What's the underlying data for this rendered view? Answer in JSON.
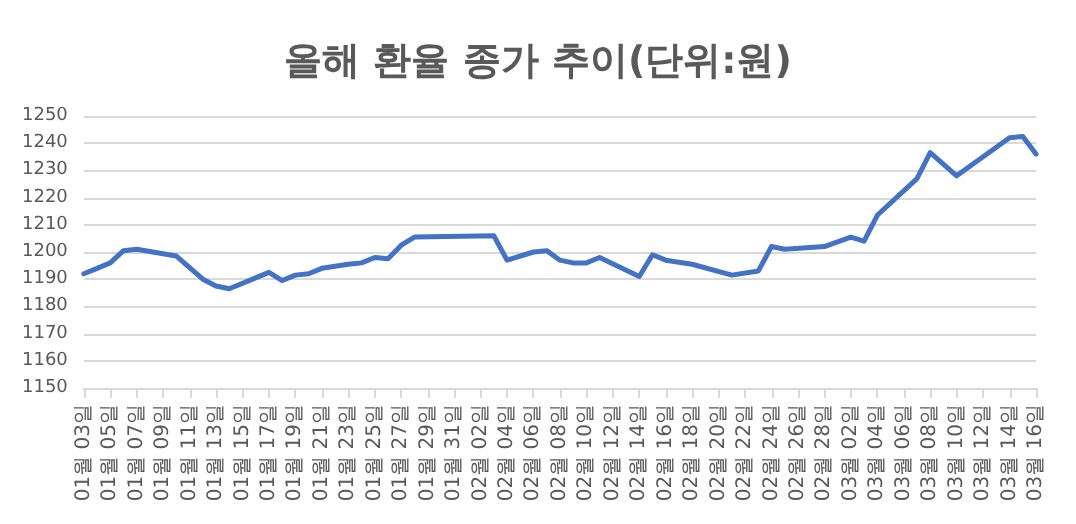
{
  "chart_data": {
    "type": "line",
    "title": "올해 환율 종가 추이(단위:원)",
    "x": [
      "--01-03",
      "--01-04",
      "--01-05",
      "--01-06",
      "--01-07",
      "--01-10",
      "--01-12",
      "--01-13",
      "--01-14",
      "--01-17",
      "--01-18",
      "--01-19",
      "--01-20",
      "--01-21",
      "--01-23",
      "--01-24",
      "--01-25",
      "--01-26",
      "--01-27",
      "--01-28",
      "--02-03",
      "--02-04",
      "--02-06",
      "--02-07",
      "--02-08",
      "--02-09",
      "--02-10",
      "--02-11",
      "--02-14",
      "--02-15",
      "--02-16",
      "--02-18",
      "--02-21",
      "--02-23",
      "--02-24",
      "--02-25",
      "--02-28",
      "--03-02",
      "--03-03",
      "--03-04",
      "--03-07",
      "--03-08",
      "--03-10",
      "--03-14",
      "--03-15",
      "--03-16"
    ],
    "series": [
      {
        "color": "#4472c4",
        "values": [
          1192,
          1194,
          1196,
          1200.5,
          1201,
          1198.5,
          1190,
          1187.5,
          1186.5,
          1192.5,
          1189.5,
          1191.5,
          1192,
          1194,
          1195.5,
          1196,
          1198,
          1197.5,
          1202.5,
          1205.5,
          1206,
          1197,
          1200,
          1200.5,
          1197,
          1196,
          1196,
          1198,
          1191,
          1199,
          1197,
          1195.5,
          1191.5,
          1193,
          1202,
          1201,
          1202,
          1205.5,
          1204,
          1213.5,
          1227,
          1236.5,
          1228,
          1242,
          1242.5,
          1236
        ]
      }
    ],
    "xlim": [
      "--01-03",
      "--03-16"
    ],
    "xticks": [
      {
        "value": "--01-03",
        "label": "01월 03일"
      },
      {
        "value": "--01-05",
        "label": "01월 05일"
      },
      {
        "value": "--01-07",
        "label": "01월 07일"
      },
      {
        "value": "--01-09",
        "label": "01월 09일"
      },
      {
        "value": "--01-11",
        "label": "01월 11일"
      },
      {
        "value": "--01-13",
        "label": "01월 13일"
      },
      {
        "value": "--01-15",
        "label": "01월 15일"
      },
      {
        "value": "--01-17",
        "label": "01월 17일"
      },
      {
        "value": "--01-19",
        "label": "01월 19일"
      },
      {
        "value": "--01-21",
        "label": "01월 21일"
      },
      {
        "value": "--01-23",
        "label": "01월 23일"
      },
      {
        "value": "--01-25",
        "label": "01월 25일"
      },
      {
        "value": "--01-27",
        "label": "01월 27일"
      },
      {
        "value": "--01-29",
        "label": "01월 29일"
      },
      {
        "value": "--01-31",
        "label": "01월 31일"
      },
      {
        "value": "--02-02",
        "label": "02월 02일"
      },
      {
        "value": "--02-04",
        "label": "02월 04일"
      },
      {
        "value": "--02-06",
        "label": "02월 06일"
      },
      {
        "value": "--02-08",
        "label": "02월 08일"
      },
      {
        "value": "--02-10",
        "label": "02월 10일"
      },
      {
        "value": "--02-12",
        "label": "02월 12일"
      },
      {
        "value": "--02-14",
        "label": "02월 14일"
      },
      {
        "value": "--02-16",
        "label": "02월 16일"
      },
      {
        "value": "--02-18",
        "label": "02월 18일"
      },
      {
        "value": "--02-20",
        "label": "02월 20일"
      },
      {
        "value": "--02-22",
        "label": "02월 22일"
      },
      {
        "value": "--02-24",
        "label": "02월 24일"
      },
      {
        "value": "--02-26",
        "label": "02월 26일"
      },
      {
        "value": "--02-28",
        "label": "02월 28일"
      },
      {
        "value": "--03-02",
        "label": "03월 02일"
      },
      {
        "value": "--03-04",
        "label": "03월 04일"
      },
      {
        "value": "--03-06",
        "label": "03월 06일"
      },
      {
        "value": "--03-08",
        "label": "03월 08일"
      },
      {
        "value": "--03-10",
        "label": "03월 10일"
      },
      {
        "value": "--03-12",
        "label": "03월 12일"
      },
      {
        "value": "--03-14",
        "label": "03월 14일"
      },
      {
        "value": "--03-16",
        "label": "03월 16일"
      }
    ],
    "ylim": [
      1150,
      1250
    ],
    "yticks": [
      1150,
      1160,
      1170,
      1180,
      1190,
      1200,
      1210,
      1220,
      1230,
      1240,
      1250
    ],
    "grid": "y"
  }
}
